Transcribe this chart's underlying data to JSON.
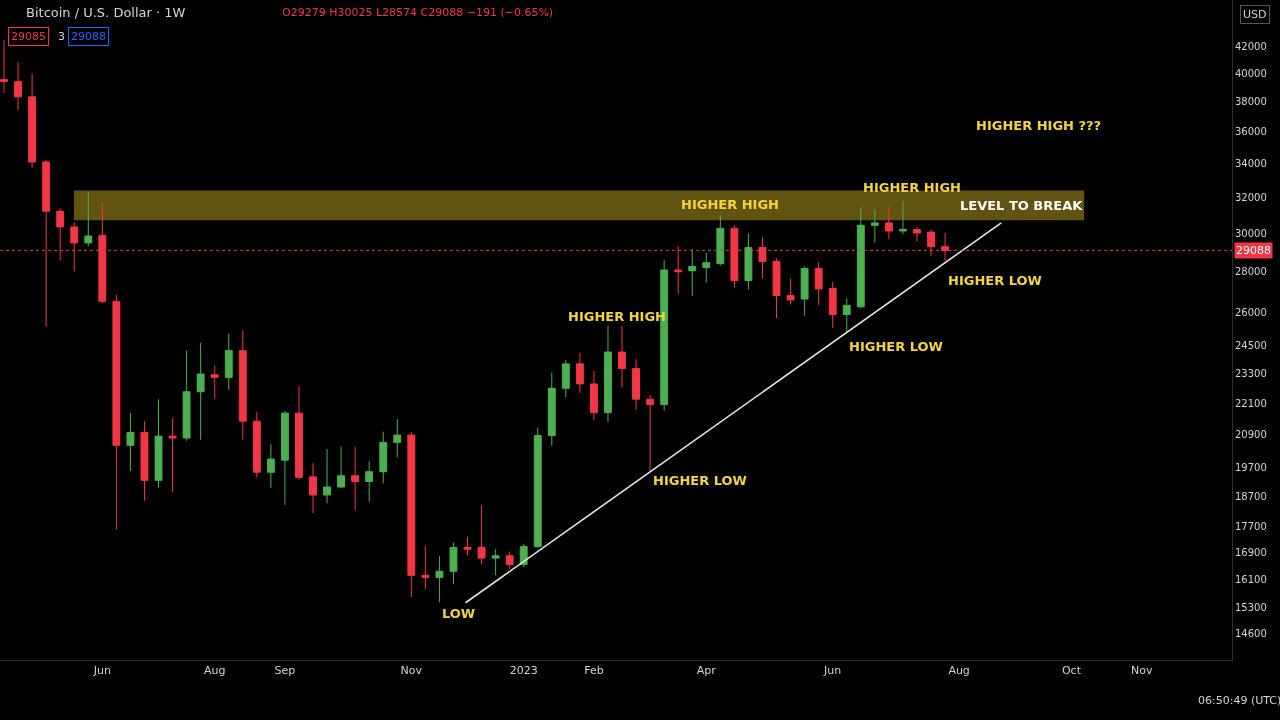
{
  "chart_data": {
    "type": "candlestick",
    "title": "Bitcoin / U.S. Dollar · 1W",
    "subtitle": "O29279 H30025 L28574 C29088 −191 (−0.65%)",
    "x": [
      "2022-04-18",
      "2022-04-25",
      "2022-05-02",
      "2022-05-09",
      "2022-05-16",
      "2022-05-23",
      "2022-05-30",
      "2022-06-06",
      "2022-06-13",
      "2022-06-20",
      "2022-06-27",
      "2022-07-04",
      "2022-07-11",
      "2022-07-18",
      "2022-07-25",
      "2022-08-01",
      "2022-08-08",
      "2022-08-15",
      "2022-08-22",
      "2022-08-29",
      "2022-09-05",
      "2022-09-12",
      "2022-09-19",
      "2022-09-26",
      "2022-10-03",
      "2022-10-10",
      "2022-10-17",
      "2022-10-24",
      "2022-10-31",
      "2022-11-07",
      "2022-11-14",
      "2022-11-21",
      "2022-11-28",
      "2022-12-05",
      "2022-12-12",
      "2022-12-19",
      "2022-12-26",
      "2023-01-02",
      "2023-01-09",
      "2023-01-16",
      "2023-01-23",
      "2023-01-30",
      "2023-02-06",
      "2023-02-13",
      "2023-02-20",
      "2023-02-27",
      "2023-03-06",
      "2023-03-13",
      "2023-03-20",
      "2023-03-27",
      "2023-04-03",
      "2023-04-10",
      "2023-04-17",
      "2023-04-24",
      "2023-05-01",
      "2023-05-08",
      "2023-05-15",
      "2023-05-22",
      "2023-05-29",
      "2023-06-05",
      "2023-06-12",
      "2023-06-19",
      "2023-06-26",
      "2023-07-03",
      "2023-07-10",
      "2023-07-17",
      "2023-07-24",
      "2023-07-31"
    ],
    "ohlc": [
      [
        39550,
        42450,
        38600,
        39400
      ],
      [
        39400,
        40800,
        37440,
        38330
      ],
      [
        38330,
        39960,
        33740,
        34100
      ],
      [
        34100,
        34230,
        25350,
        31210
      ],
      [
        31210,
        31360,
        28570,
        30340
      ],
      [
        30340,
        30600,
        28000,
        29480
      ],
      [
        29480,
        32300,
        29300,
        29850
      ],
      [
        29880,
        31650,
        26460,
        26540
      ],
      [
        26540,
        26850,
        17600,
        20490
      ],
      [
        20490,
        21720,
        19560,
        20970
      ],
      [
        20970,
        21400,
        18550,
        19240
      ],
      [
        19240,
        22260,
        18980,
        20830
      ],
      [
        20830,
        21510,
        18850,
        20760
      ],
      [
        20760,
        24290,
        20660,
        22560
      ],
      [
        22560,
        24640,
        20690,
        23290
      ],
      [
        23260,
        23640,
        22260,
        23150
      ],
      [
        23150,
        25040,
        22640,
        24290
      ],
      [
        24290,
        25170,
        20700,
        21400
      ],
      [
        21400,
        21750,
        19340,
        19520
      ],
      [
        19520,
        20530,
        18980,
        19990
      ],
      [
        19950,
        21800,
        18410,
        21710
      ],
      [
        21710,
        22790,
        19270,
        19340
      ],
      [
        19360,
        19850,
        18140,
        18740
      ],
      [
        18740,
        20350,
        18460,
        19010
      ],
      [
        19010,
        20440,
        18970,
        19400
      ],
      [
        19400,
        20440,
        18230,
        19200
      ],
      [
        19200,
        19900,
        18520,
        19540
      ],
      [
        19540,
        21000,
        19140,
        20590
      ],
      [
        20590,
        21470,
        20060,
        20870
      ],
      [
        20870,
        20980,
        15600,
        16220
      ],
      [
        16220,
        17100,
        15820,
        16160
      ],
      [
        16160,
        16790,
        15450,
        16340
      ],
      [
        16340,
        17210,
        15960,
        17050
      ],
      [
        17050,
        17390,
        16810,
        17000
      ],
      [
        17060,
        18390,
        16540,
        16730
      ],
      [
        16730,
        17000,
        16220,
        16800
      ],
      [
        16800,
        16930,
        16400,
        16540
      ],
      [
        16540,
        17170,
        16460,
        17080
      ],
      [
        17080,
        21150,
        17050,
        20850
      ],
      [
        20850,
        23350,
        20470,
        22700
      ],
      [
        22700,
        23890,
        22340,
        23720
      ],
      [
        23720,
        24200,
        22510,
        22880
      ],
      [
        22880,
        23420,
        21440,
        21730
      ],
      [
        21730,
        25410,
        21360,
        24230
      ],
      [
        24230,
        25380,
        22740,
        23520
      ],
      [
        23520,
        23920,
        21840,
        22260
      ],
      [
        22260,
        22420,
        19540,
        22050
      ],
      [
        22050,
        28570,
        21800,
        28080
      ],
      [
        28080,
        29300,
        26900,
        27990
      ],
      [
        28040,
        29150,
        26800,
        28260
      ],
      [
        28200,
        28950,
        27450,
        28450
      ],
      [
        28400,
        30970,
        28300,
        30260
      ],
      [
        30260,
        30430,
        27170,
        27550
      ],
      [
        27550,
        29980,
        27110,
        29240
      ],
      [
        29240,
        29800,
        27660,
        28510
      ],
      [
        28510,
        28680,
        25750,
        26820
      ],
      [
        26820,
        27660,
        26390,
        26610
      ],
      [
        26650,
        28270,
        25860,
        28150
      ],
      [
        28150,
        28480,
        26350,
        27140
      ],
      [
        27170,
        27480,
        25300,
        25920
      ],
      [
        25920,
        26690,
        25080,
        26350
      ],
      [
        26280,
        31440,
        26200,
        30430
      ],
      [
        30430,
        31290,
        29500,
        30560
      ],
      [
        30560,
        31480,
        29680,
        30120
      ],
      [
        30120,
        31790,
        29950,
        30200
      ],
      [
        30200,
        30330,
        29550,
        30010
      ],
      [
        30060,
        30200,
        28770,
        29280
      ],
      [
        29279,
        30025,
        28574,
        29088
      ]
    ],
    "colors": [
      "#f23645",
      "#f23645",
      "#f23645",
      "#f23645",
      "#f23645",
      "#f23645",
      "#4caf50",
      "#f23645",
      "#f23645",
      "#4caf50",
      "#f23645",
      "#4caf50",
      "#f23645",
      "#4caf50",
      "#4caf50",
      "#f23645",
      "#4caf50",
      "#f23645",
      "#f23645",
      "#4caf50",
      "#4caf50",
      "#f23645",
      "#f23645",
      "#4caf50",
      "#4caf50",
      "#f23645",
      "#4caf50",
      "#4caf50",
      "#4caf50",
      "#f23645",
      "#f23645",
      "#4caf50",
      "#4caf50",
      "#f23645",
      "#f23645",
      "#4caf50",
      "#f23645",
      "#4caf50",
      "#4caf50",
      "#4caf50",
      "#4caf50",
      "#f23645",
      "#f23645",
      "#4caf50",
      "#f23645",
      "#f23645",
      "#f23645",
      "#4caf50",
      "#f23645",
      "#4caf50",
      "#4caf50",
      "#4caf50",
      "#f23645",
      "#4caf50",
      "#f23645",
      "#f23645",
      "#f23645",
      "#4caf50",
      "#f23645",
      "#f23645",
      "#4caf50",
      "#4caf50",
      "#4caf50",
      "#f23645",
      "#4caf50",
      "#f23645",
      "#f23645",
      "#f23645"
    ],
    "series": [
      {
        "type": "line",
        "x": [
          "2022-12-04",
          "2023-08-28"
        ],
        "values": [
          15440,
          30560
        ],
        "color": "#e6e6e6"
      }
    ],
    "log": "y",
    "xlim": [
      "2022-04-16",
      "2023-12-21"
    ],
    "xticks": [
      {
        "value": "2022-06-06",
        "label": "Jun"
      },
      {
        "value": "2022-08-01",
        "label": "Aug"
      },
      {
        "value": "2022-09-05",
        "label": "Sep"
      },
      {
        "value": "2022-11-07",
        "label": "Nov"
      },
      {
        "value": "2023-01-02",
        "label": "2023"
      },
      {
        "value": "2023-02-06",
        "label": "Feb"
      },
      {
        "value": "2023-04-03",
        "label": "Apr"
      },
      {
        "value": "2023-06-05",
        "label": "Jun"
      },
      {
        "value": "2023-08-07",
        "label": "Aug"
      },
      {
        "value": "2023-10-02",
        "label": "Oct"
      },
      {
        "value": "2023-11-06",
        "label": "Nov"
      }
    ],
    "ylim": [
      13930,
      45620
    ],
    "yticks": [
      42000,
      40000,
      38000,
      36000,
      34000,
      32000,
      30000,
      28000,
      26000,
      24500,
      23300,
      22100,
      20900,
      19700,
      18700,
      17700,
      16900,
      16100,
      15300,
      14600
    ],
    "ref_lines": [
      {
        "axis": "y",
        "value": 29088,
        "label": "29088",
        "color": "#f23645",
        "line_style": "dotted"
      }
    ],
    "bands": [
      {
        "axis": "y",
        "from": 30700,
        "to": 32400,
        "label": "LEVEL TO BREAK",
        "color": "#6b5c14"
      }
    ],
    "annotations": [
      "LOW",
      "HIGHER HIGH",
      "HIGHER LOW",
      "HIGHER HIGH",
      "HIGHER LOW",
      "HIGHER HIGH",
      "HIGHER LOW",
      "HIGHER HIGH ???",
      "29085",
      "3",
      "29088",
      "USD",
      "06:50:49 (UTC)"
    ]
  }
}
